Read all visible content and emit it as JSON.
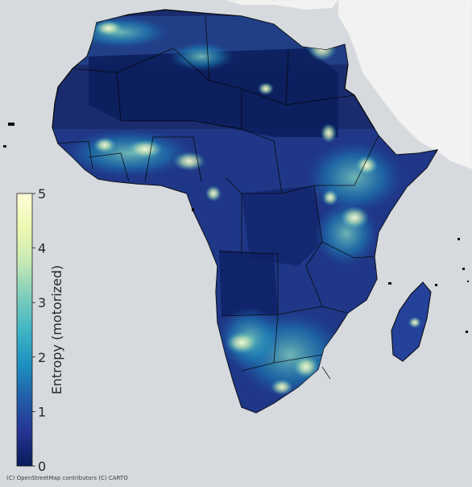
{
  "map": {
    "attribution": "(C) OpenStreetMap contributors (C) CARTO",
    "basemap_style": "CARTO light",
    "region": "Africa",
    "colors": {
      "ocean": "#d6dade",
      "land_basemap": "#f2f2f2",
      "border": "#0a0a0a"
    }
  },
  "colorbar": {
    "label": "Entropy (motorized)",
    "ticks": [
      "0",
      "1",
      "2",
      "3",
      "4",
      "5"
    ],
    "min": 0,
    "max": 5,
    "colormap": "YlGnBu_r",
    "stops": [
      "#081d58",
      "#253494",
      "#225ea8",
      "#1d91c0",
      "#41b6c4",
      "#7fcdbb",
      "#c7e9b4",
      "#edf8b1",
      "#ffffd9"
    ]
  }
}
